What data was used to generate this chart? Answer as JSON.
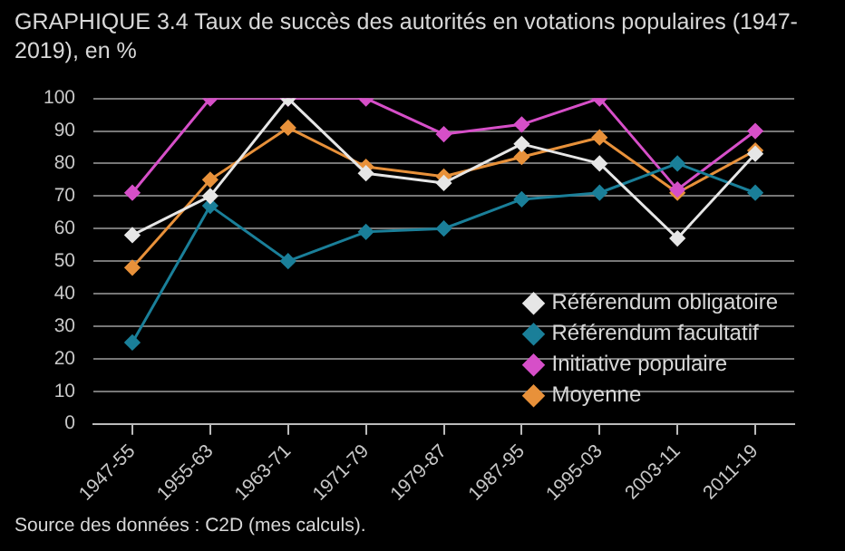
{
  "chart_data": {
    "type": "line",
    "title": "GRAPHIQUE 3.4 Taux de succès des autorités en votations populaires (1947-2019), en %",
    "categories": [
      "1947-55",
      "1955-63",
      "1963-71",
      "1971-79",
      "1979-87",
      "1987-95",
      "1995-03",
      "2003-11",
      "2011-19"
    ],
    "series": [
      {
        "name": "Référendum obligatoire",
        "color": "#e6e6e6",
        "values": [
          58,
          70,
          100,
          77,
          74,
          86,
          80,
          57,
          83
        ]
      },
      {
        "name": "Référendum facultatif",
        "color": "#1a7f99",
        "values": [
          25,
          67,
          50,
          59,
          60,
          69,
          71,
          80,
          71
        ]
      },
      {
        "name": "Initiative populaire",
        "color": "#d64fc8",
        "values": [
          71,
          100,
          100,
          100,
          89,
          92,
          100,
          72,
          90
        ]
      },
      {
        "name": "Moyenne",
        "color": "#e8913a",
        "values": [
          48,
          75,
          91,
          79,
          76,
          82,
          88,
          71,
          84
        ]
      }
    ],
    "ylim": [
      0,
      100
    ],
    "yticks": [
      0,
      10,
      20,
      30,
      40,
      50,
      60,
      70,
      80,
      90,
      100
    ],
    "grid": "y",
    "legend": "bottom right",
    "marker": "diamond",
    "line_style": "solid",
    "annotations": [
      "Source des données : C2D (mes calculs)."
    ]
  }
}
